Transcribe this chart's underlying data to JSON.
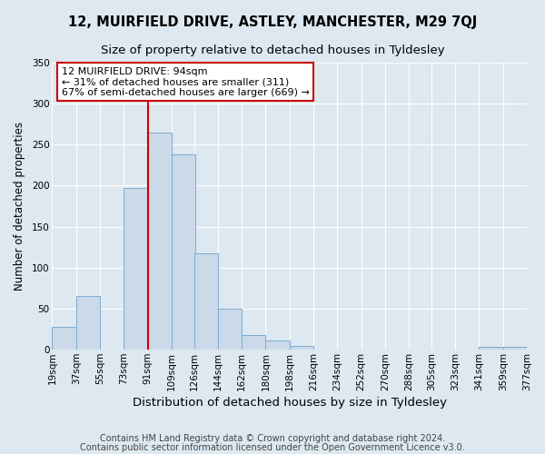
{
  "title": "12, MUIRFIELD DRIVE, ASTLEY, MANCHESTER, M29 7QJ",
  "subtitle": "Size of property relative to detached houses in Tyldesley",
  "xlabel": "Distribution of detached houses by size in Tyldesley",
  "ylabel": "Number of detached properties",
  "bar_left_edges": [
    19,
    37,
    55,
    73,
    91,
    109,
    126,
    144,
    162,
    180,
    198,
    216,
    234,
    252,
    270,
    288,
    305,
    323,
    341,
    359
  ],
  "bar_heights": [
    28,
    65,
    0,
    197,
    265,
    238,
    118,
    50,
    18,
    11,
    5,
    0,
    0,
    0,
    0,
    0,
    0,
    0,
    4,
    4
  ],
  "bin_width": 18,
  "bar_color": "#ccd9e8",
  "bar_edge_color": "#7aadd4",
  "vline_x": 91,
  "vline_color": "#cc0000",
  "xtick_labels": [
    "19sqm",
    "37sqm",
    "55sqm",
    "73sqm",
    "91sqm",
    "109sqm",
    "126sqm",
    "144sqm",
    "162sqm",
    "180sqm",
    "198sqm",
    "216sqm",
    "234sqm",
    "252sqm",
    "270sqm",
    "288sqm",
    "305sqm",
    "323sqm",
    "341sqm",
    "359sqm",
    "377sqm"
  ],
  "xtick_positions": [
    19,
    37,
    55,
    73,
    91,
    109,
    126,
    144,
    162,
    180,
    198,
    216,
    234,
    252,
    270,
    288,
    305,
    323,
    341,
    359,
    377
  ],
  "ylim": [
    0,
    350
  ],
  "yticks": [
    0,
    50,
    100,
    150,
    200,
    250,
    300,
    350
  ],
  "xlim_left": 19,
  "xlim_right": 377,
  "annotation_title": "12 MUIRFIELD DRIVE: 94sqm",
  "annotation_line1": "← 31% of detached houses are smaller (311)",
  "annotation_line2": "67% of semi-detached houses are larger (669) →",
  "annotation_box_color": "#ffffff",
  "annotation_border_color": "#cc0000",
  "footer1": "Contains HM Land Registry data © Crown copyright and database right 2024.",
  "footer2": "Contains public sector information licensed under the Open Government Licence v3.0.",
  "background_color": "#dde8f0",
  "plot_bg_color": "#dde8f0",
  "grid_color": "#ffffff",
  "title_fontsize": 10.5,
  "subtitle_fontsize": 9.5,
  "xlabel_fontsize": 9.5,
  "ylabel_fontsize": 8.5,
  "tick_fontsize": 7.5,
  "annotation_fontsize": 8,
  "footer_fontsize": 7
}
